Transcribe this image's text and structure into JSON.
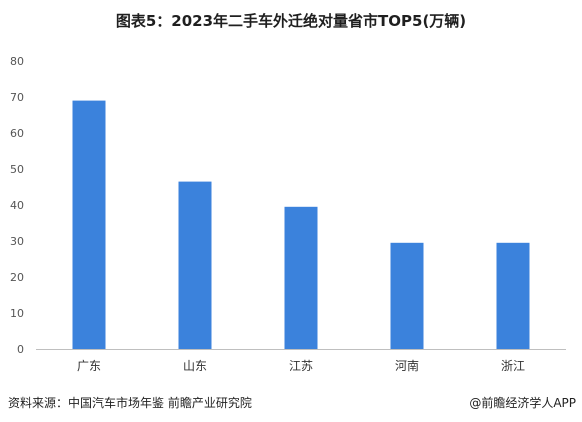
{
  "chart_data": {
    "type": "bar",
    "title": "图表5：2023年二手车外迁绝对量省市TOP5(万辆)",
    "categories": [
      "广东",
      "山东",
      "江苏",
      "河南",
      "浙江"
    ],
    "values": [
      69,
      46.5,
      39.5,
      29.5,
      29.5
    ],
    "ylim": [
      0,
      80
    ],
    "yticks": [
      0,
      10,
      20,
      30,
      40,
      50,
      60,
      70,
      80
    ],
    "xlabel": "",
    "ylabel": "",
    "grid": false,
    "bar_color": "#3b82dc"
  },
  "footer": {
    "source": "资料来源：中国汽车市场年鉴 前瞻产业研究院",
    "brand": "@前瞻经济学人APP"
  }
}
